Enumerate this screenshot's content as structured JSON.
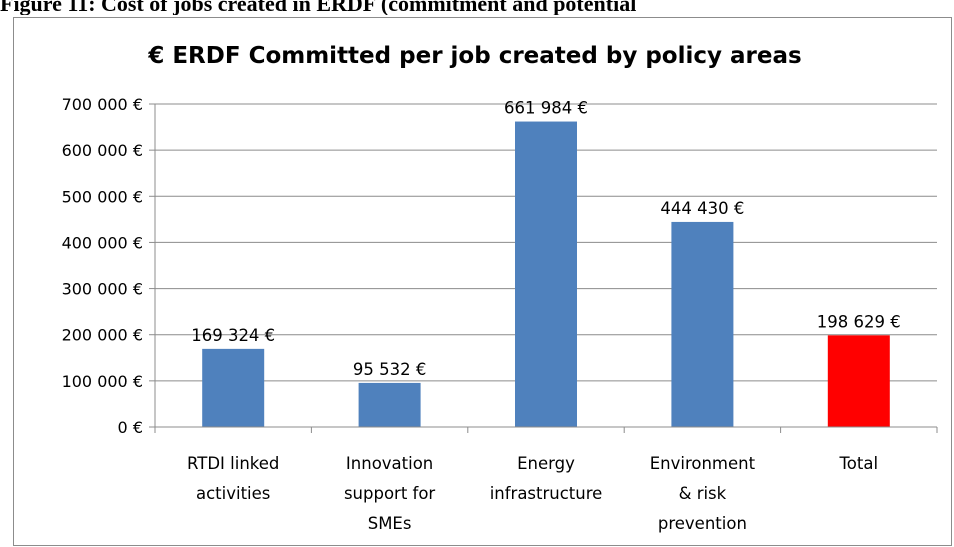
{
  "page_caption": "Figure 11: Cost of jobs created in ERDF (commitment and potential",
  "chart_data": {
    "type": "bar",
    "title": "€ ERDF Committed per job created by policy areas",
    "xlabel": "",
    "ylabel": "",
    "ylim": [
      0,
      700000
    ],
    "y_ticks": [
      "0 €",
      "100 000 €",
      "200 000 €",
      "300 000 €",
      "400 000 €",
      "500 000 €",
      "600 000 €",
      "700 000 €"
    ],
    "grid": true,
    "legend": "none",
    "categories": [
      [
        "RTDI linked",
        "activities"
      ],
      [
        "Innovation",
        "support for",
        "SMEs"
      ],
      [
        "Energy",
        "infrastructure"
      ],
      [
        "Environment",
        "& risk",
        "prevention"
      ],
      [
        "Total"
      ]
    ],
    "values": [
      169324,
      95532,
      661984,
      444430,
      198629
    ],
    "data_labels": [
      "169 324 €",
      "95 532 €",
      "661 984 €",
      "444 430 €",
      "198 629 €"
    ],
    "colors": [
      "#4f81bd",
      "#4f81bd",
      "#4f81bd",
      "#4f81bd",
      "#ff0000"
    ]
  }
}
